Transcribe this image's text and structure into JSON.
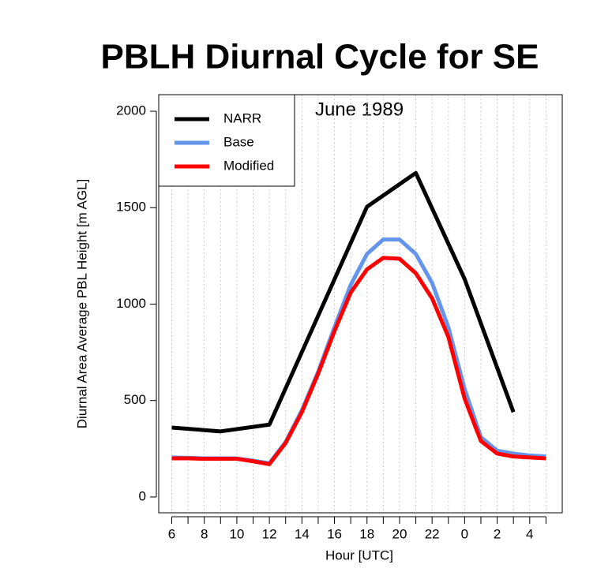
{
  "chart_data": {
    "type": "line",
    "title": "PBLH Diurnal Cycle for SE",
    "annotation": "June 1989",
    "x_label": "Hour [UTC]",
    "y_label": "Diurnal Area Average PBL Height [m AGL]",
    "xlim": [
      5.2,
      30
    ],
    "ylim": [
      -82,
      2086
    ],
    "xticks": [
      6,
      8,
      10,
      12,
      14,
      16,
      18,
      20,
      22,
      {
        "value": 24,
        "label": "0"
      },
      {
        "value": 26,
        "label": "2"
      },
      {
        "value": 28,
        "label": "4"
      }
    ],
    "xminorticks": [
      7,
      9,
      11,
      13,
      15,
      17,
      19,
      21,
      23,
      25,
      27,
      29
    ],
    "yticks": [
      0,
      500,
      1000,
      1500,
      2000
    ],
    "grid": true,
    "legend": "top-left",
    "series": [
      {
        "name": "NARR",
        "color": "#000000",
        "x": [
          6,
          9,
          12,
          15,
          18,
          21,
          24,
          27
        ],
        "values": [
          360,
          340,
          375,
          940,
          1505,
          1680,
          1130,
          440
        ]
      },
      {
        "name": "Base",
        "color": "#6495ed",
        "x": [
          6,
          7,
          8,
          9,
          10,
          11,
          12,
          13,
          14,
          15,
          16,
          17,
          18,
          19,
          20,
          21,
          22,
          23,
          24,
          25,
          26,
          27,
          28,
          29
        ],
        "values": [
          205,
          203,
          200,
          200,
          200,
          188,
          175,
          285,
          450,
          650,
          880,
          1100,
          1260,
          1335,
          1335,
          1260,
          1110,
          880,
          560,
          310,
          240,
          225,
          215,
          210
        ]
      },
      {
        "name": "Modified",
        "color": "#ff0000",
        "x": [
          6,
          7,
          8,
          9,
          10,
          11,
          12,
          13,
          14,
          15,
          16,
          17,
          18,
          19,
          20,
          21,
          22,
          23,
          24,
          25,
          26,
          27,
          28,
          29
        ],
        "values": [
          200,
          200,
          198,
          198,
          198,
          185,
          170,
          280,
          440,
          640,
          860,
          1060,
          1180,
          1240,
          1235,
          1160,
          1030,
          830,
          510,
          290,
          225,
          210,
          205,
          200
        ]
      }
    ]
  }
}
